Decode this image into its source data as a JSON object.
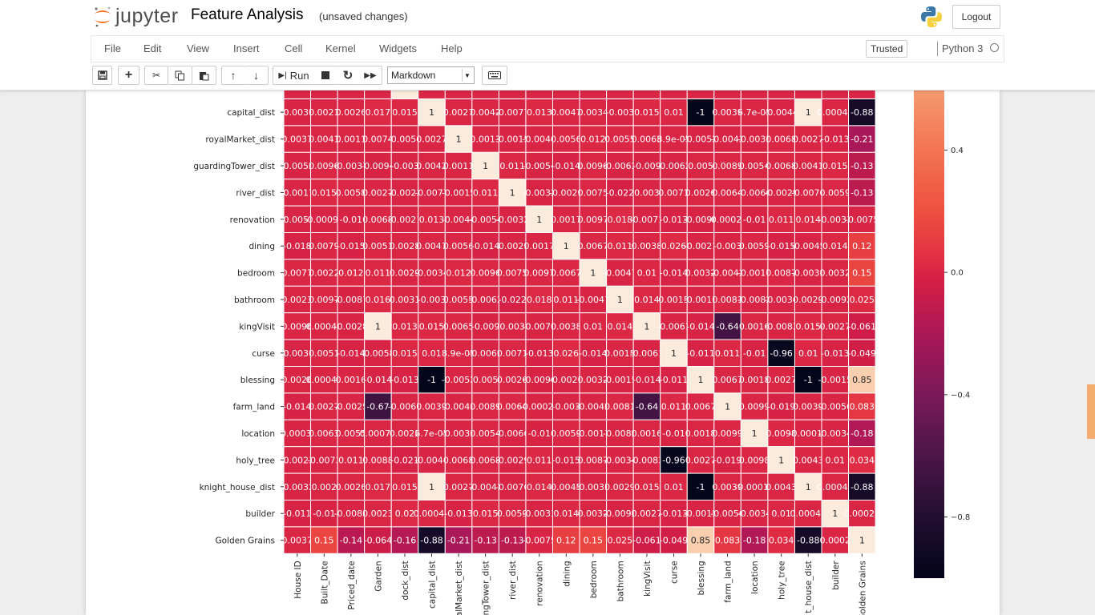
{
  "header": {
    "logo_text": "jupyter",
    "notebook_name": "Feature Analysis",
    "autosave_status": "(unsaved changes)",
    "logout_label": "Logout"
  },
  "menubar": {
    "items": [
      "File",
      "Edit",
      "View",
      "Insert",
      "Cell",
      "Kernel",
      "Widgets",
      "Help"
    ],
    "trusted_label": "Trusted",
    "kernel_name": "Python 3"
  },
  "toolbar": {
    "run_label": "Run",
    "cell_type": "Markdown"
  },
  "colors": {
    "accent_orange": "#f37626",
    "scroll_indicator": "#f4a460"
  },
  "chart_data": {
    "type": "heatmap",
    "row_labels": [
      "capital_dist",
      "royalMarket_dist",
      "guardingTower_dist",
      "river_dist",
      "renovation",
      "dining",
      "bedroom",
      "bathroom",
      "kingVisit",
      "curse",
      "blessing",
      "farm_land",
      "location",
      "holy_tree",
      "knight_house_dist",
      "builder",
      "Golden Grains"
    ],
    "column_labels": [
      "House ID",
      "Built_Date",
      "Priced_date",
      "Garden",
      "dock_dist",
      "capital_dist",
      "alMarket_dist",
      "ngTower_dist",
      "river_dist",
      "renovation",
      "dining",
      "bedroom",
      "bathroom",
      "kingVisit",
      "curse",
      "blessing",
      "farm_land",
      "location",
      "holy_tree",
      "t_house_dist",
      "builder",
      "Golden Grains"
    ],
    "cell_labels": [
      [
        "-0.0031",
        "0.0021",
        "0.0026",
        "0.017",
        "0.015",
        "1",
        "0.0027",
        "0.0042",
        "-0.0077",
        "0.013",
        "0.0047",
        "0.0034",
        "-0.003",
        "0.015",
        "0.01",
        "-1",
        "0.0039",
        "6.7e-05",
        "-0.0044",
        "1",
        "0.00047",
        "-0.88"
      ],
      [
        "0.0037",
        "0.0041",
        "0.0011",
        "0.0074",
        "-0.0054",
        "0.0027",
        "1",
        "0.0013",
        "-0.0015",
        "-0.0044",
        "0.0056",
        "0.012",
        "0.0055",
        "0.0065",
        "8.9e-05",
        "-0.0052",
        "-0.0043",
        "-0.0035",
        "0.0068",
        "0.0027",
        "-0.013",
        "-0.21"
      ],
      [
        "-0.0052",
        "0.0096",
        "-0.0037",
        "-0.0094",
        "-0.003",
        "0.0042",
        "0.0011",
        "1",
        "0.011",
        "-0.0054",
        "-0.014",
        "0.0096",
        "-0.0062",
        "-0.009",
        "-0.0062",
        "0.005",
        "0.0089",
        "0.0054",
        "0.0068",
        "0.0041",
        "0.015",
        "-0.13"
      ],
      [
        "-0.0017",
        "0.015",
        "0.0058",
        "0.0027",
        "-0.0023",
        "-0.0077",
        "-0.0015",
        "0.011",
        "1",
        "-0.0032",
        "-0.0029",
        "0.0075",
        "-0.022",
        "0.003",
        "0.0071",
        "0.0026",
        "0.0064",
        "-0.0066",
        "-0.0029",
        "-0.0076",
        "0.0059",
        "-0.13"
      ],
      [
        "-0.0051",
        "-0.00095",
        "-0.01",
        "0.0068",
        "-0.0021",
        "0.013",
        "-0.0044",
        "-0.0054",
        "-0.0032",
        "1",
        "0.0017",
        "0.0097",
        "0.018",
        "-0.0071",
        "-0.013",
        "-0.0096",
        "-0.00022",
        "-0.01",
        "0.011",
        "0.014",
        "-0.0033",
        "-0.0075"
      ],
      [
        "-0.018",
        "0.0079",
        "-0.015",
        "0.0051",
        "0.0028",
        "0.0047",
        "0.0056",
        "-0.014",
        "-0.0029",
        "0.0017",
        "1",
        "0.0067",
        "0.011",
        "0.0038",
        "0.026",
        "-0.0021",
        "-0.003",
        "0.0059",
        "-0.015",
        "-0.0045",
        "0.014",
        "0.12"
      ],
      [
        "0.0077",
        "0.0022",
        "0.012",
        "0.011",
        "0.0029",
        "-0.0034",
        "0.012",
        "0.0096",
        "0.0075",
        "0.0097",
        "0.0067",
        "1",
        "-0.0047",
        "0.01",
        "-0.014",
        "0.0032",
        "-0.0042",
        "-0.0017",
        "0.0087",
        "-0.0033",
        "0.0032",
        "0.15"
      ],
      [
        "0.0023",
        "0.0097",
        "-0.0087",
        "0.016",
        "0.0031",
        "-0.003",
        "0.0055",
        "-0.0062",
        "-0.022",
        "0.018",
        "0.011",
        "-0.0047",
        "1",
        "0.014",
        "0.0015",
        "-0.0015",
        "0.0081",
        "-0.0082",
        "-0.0034",
        "0.0029",
        "-0.0092",
        "0.025"
      ],
      [
        "0.0096",
        "0.00047",
        "-0.0028",
        "1",
        "0.013",
        "0.015",
        "0.0065",
        "-0.009",
        "0.003",
        "-0.0071",
        "0.0038",
        "0.01",
        "0.014",
        "1",
        "-0.0061",
        "-0.014",
        "-0.64",
        "0.0016",
        "-0.0083",
        "0.015",
        "0.0027",
        "-0.061"
      ],
      [
        "-0.0031",
        "0.0051",
        "-0.014",
        "-0.0058",
        "0.015",
        "0.01",
        "8.9e-05",
        "-0.0062",
        "0.0071",
        "-0.013",
        "0.026",
        "-0.014",
        "0.0015",
        "-0.0061",
        "1",
        "-0.011",
        "0.011",
        "-0.01",
        "-0.96",
        "0.01",
        "-0.013",
        "-0.049"
      ],
      [
        "0.0026",
        "0.00045",
        "0.0016",
        "-0.014",
        "-0.013",
        "-1",
        "-0.0052",
        "0.005",
        "0.0026",
        "-0.0096",
        "-0.0021",
        "0.0032",
        "-0.0015",
        "-0.014",
        "-0.011",
        "1",
        "0.0067",
        "0.0018",
        "0.0027",
        "-1",
        "-0.0015",
        "0.85"
      ],
      [
        "-0.014",
        "0.0027",
        "-0.0025",
        "-0.67",
        "-0.0067",
        "0.0039",
        "-0.0043",
        "0.0089",
        "0.0064",
        "-0.00022",
        "-0.003",
        "-0.0042",
        "0.0081",
        "-0.64",
        "0.011",
        "0.0067",
        "1",
        "0.0099",
        "-0.019",
        "0.0039",
        "-0.0056",
        "0.083"
      ],
      [
        "-0.00035",
        "0.0063",
        "0.0055",
        "0.00077",
        "0.0022",
        "6.7e-05",
        "-0.0035",
        "0.0054",
        "-0.0066",
        "-0.01",
        "0.0059",
        "-0.0017",
        "-0.0082",
        "0.0016",
        "-0.01",
        "0.0018",
        "0.0099",
        "1",
        "0.0098",
        "-0.00011",
        "-0.0034",
        "-0.18"
      ],
      [
        "-0.0023",
        "-0.0073",
        "0.011",
        "0.0088",
        "-0.021",
        "-0.0044",
        "0.0068",
        "0.0068",
        "-0.0029",
        "0.011",
        "-0.015",
        "0.0087",
        "-0.0034",
        "-0.0083",
        "-0.96",
        "0.0027",
        "-0.019",
        "0.0098",
        "1",
        "0.0043",
        "0.01",
        "0.034"
      ],
      [
        "-0.0032",
        "0.002",
        "0.0026",
        "0.017",
        "0.015",
        "1",
        "0.0027",
        "-0.0041",
        "-0.0076",
        "0.014",
        "0.0045",
        "-0.0033",
        "0.0029",
        "0.015",
        "0.01",
        "-1",
        "0.0039",
        "-0.00011",
        "0.0043",
        "1",
        "0.00044",
        "-0.88"
      ],
      [
        "-0.011",
        "-0.01",
        "-0.0083",
        "0.0023",
        "0.02",
        "0.00047",
        "-0.013",
        "0.015",
        "0.0059",
        "-0.0033",
        "0.014",
        "0.0032",
        "-0.0092",
        "0.0027",
        "-0.013",
        "-0.0015",
        "-0.0056",
        "-0.0034",
        "0.01",
        "0.00044",
        "1",
        "0.00027"
      ],
      [
        "0.0037",
        "0.15",
        "-0.14",
        "-0.064",
        "-0.16",
        "-0.88",
        "-0.21",
        "-0.13",
        "-0.13",
        "-0.0075",
        "0.12",
        "0.15",
        "0.025",
        "-0.061",
        "-0.049",
        "0.85",
        "0.083",
        "-0.18",
        "0.034",
        "-0.88",
        "0.0002",
        "1"
      ]
    ],
    "colorbar": {
      "ticks": [
        0.4,
        0.0,
        -0.4,
        -0.8
      ],
      "tick_labels": [
        "0.4",
        "0.0",
        "−0.4",
        "−0.8"
      ],
      "range_visible": [
        -1.0,
        0.6
      ],
      "colormap": "rocket"
    }
  }
}
